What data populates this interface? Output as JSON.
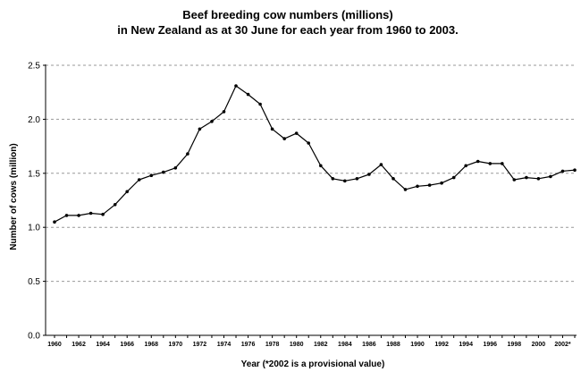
{
  "chart_data": {
    "type": "line",
    "title_lines": [
      "Beef breeding cow numbers (millions)",
      "in New Zealand as at 30 June for each year from 1960 to 2003."
    ],
    "xlabel": "Year  (*2002 is a provisional value)",
    "ylabel": "Number of cows (million)",
    "ylim": [
      0,
      2.5
    ],
    "yticks": [
      "0.0",
      "0.5",
      "1.0",
      "1.5",
      "2.0",
      "2.5"
    ],
    "ytick_values": [
      0,
      0.5,
      1.0,
      1.5,
      2.0,
      2.5
    ],
    "xlim": [
      1960,
      2003
    ],
    "xtick_labels": [
      "1960",
      "1962",
      "1964",
      "1966",
      "1968",
      "1970",
      "1972",
      "1974",
      "1976",
      "1978",
      "1980",
      "1982",
      "1984",
      "1986",
      "1988",
      "1990",
      "1992",
      "1994",
      "1996",
      "1998",
      "2000",
      "2002*"
    ],
    "xtick_values": [
      1960,
      1962,
      1964,
      1966,
      1968,
      1970,
      1972,
      1974,
      1976,
      1978,
      1980,
      1982,
      1984,
      1986,
      1988,
      1990,
      1992,
      1994,
      1996,
      1998,
      2000,
      2002
    ],
    "grid": "horizontal-dashed",
    "line_color": "#000000",
    "grid_color": "#999999",
    "series": [
      {
        "x": [
          1960,
          1961,
          1962,
          1963,
          1964,
          1965,
          1966,
          1967,
          1968,
          1969,
          1970,
          1971,
          1972,
          1973,
          1974,
          1975,
          1976,
          1977,
          1978,
          1979,
          1980,
          1981,
          1982,
          1983,
          1984,
          1985,
          1986,
          1987,
          1988,
          1989,
          1990,
          1991,
          1992,
          1993,
          1994,
          1995,
          1996,
          1997,
          1998,
          1999,
          2000,
          2001,
          2002,
          2003
        ],
        "values": [
          1.05,
          1.11,
          1.11,
          1.13,
          1.12,
          1.21,
          1.33,
          1.44,
          1.48,
          1.51,
          1.55,
          1.68,
          1.91,
          1.98,
          2.07,
          2.31,
          2.23,
          2.14,
          1.91,
          1.82,
          1.87,
          1.78,
          1.57,
          1.45,
          1.43,
          1.45,
          1.49,
          1.58,
          1.45,
          1.35,
          1.38,
          1.39,
          1.41,
          1.46,
          1.57,
          1.61,
          1.59,
          1.59,
          1.44,
          1.46,
          1.45,
          1.47,
          1.52,
          1.53
        ]
      }
    ]
  }
}
